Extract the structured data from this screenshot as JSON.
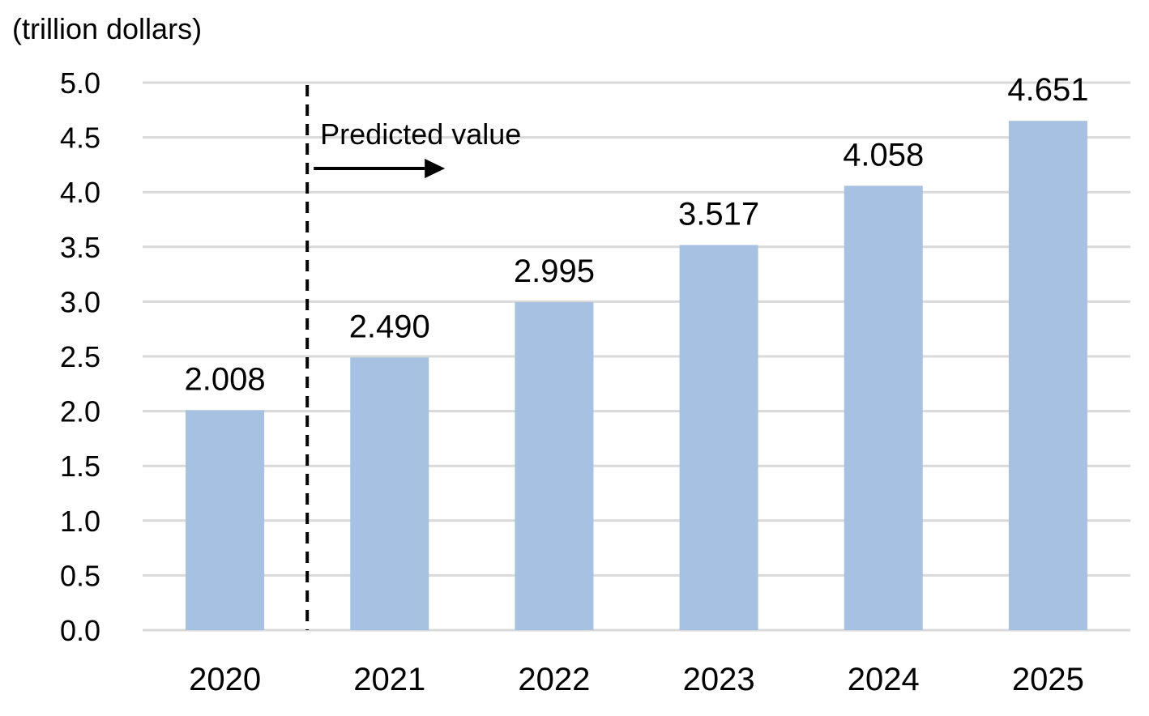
{
  "chart_data": {
    "type": "bar",
    "unit_label": "(trillion dollars)",
    "categories": [
      "2020",
      "2021",
      "2022",
      "2023",
      "2024",
      "2025"
    ],
    "values": [
      2.008,
      2.49,
      2.995,
      3.517,
      4.058,
      4.651
    ],
    "value_labels": [
      "2.008",
      "2.490",
      "2.995",
      "3.517",
      "4.058",
      "4.651"
    ],
    "ylim": [
      0,
      5
    ],
    "yticks": [
      "0.0",
      "0.5",
      "1.0",
      "1.5",
      "2.0",
      "2.5",
      "3.0",
      "3.5",
      "4.0",
      "4.5",
      "5.0"
    ],
    "grid": true,
    "bar_color": "#a6c1e1",
    "annotation": {
      "text": "Predicted value",
      "divider_after_category": "2020"
    }
  }
}
